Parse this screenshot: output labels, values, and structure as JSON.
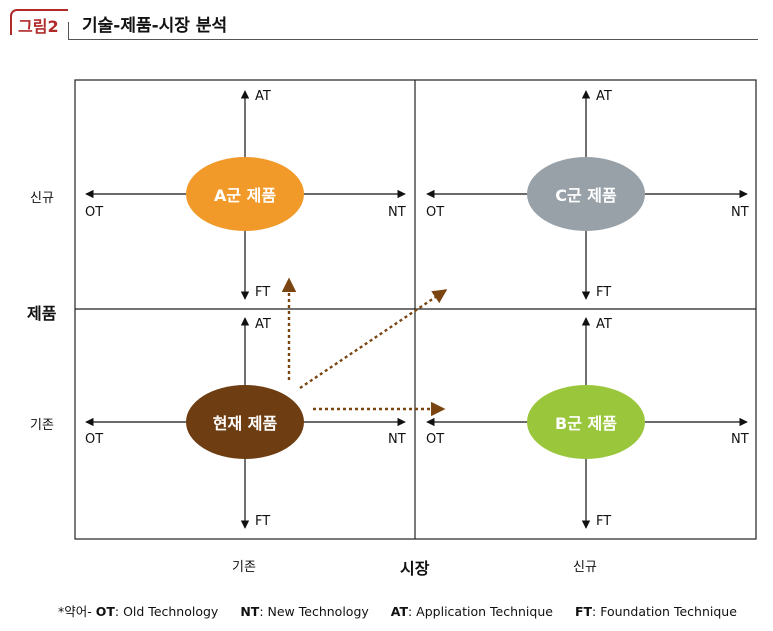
{
  "header": {
    "tag": "그림2",
    "title": "기술-제품-시장 분석"
  },
  "axes": {
    "product_label": "제품",
    "market_label": "시장",
    "row_new": "신규",
    "row_existing": "기존",
    "col_existing": "기존",
    "col_new": "신규"
  },
  "arrow_labels": {
    "up": "AT",
    "down": "FT",
    "left": "OT",
    "right": "NT"
  },
  "products": {
    "a": {
      "label": "A군 제품",
      "color": "#f19a2a"
    },
    "c": {
      "label": "C군 제품",
      "color": "#98a1a8"
    },
    "current": {
      "label": "현재 제품",
      "color": "#6e3e12"
    },
    "b": {
      "label": "B군 제품",
      "color": "#9ac63c"
    }
  },
  "footnote": {
    "prefix": "*약어-",
    "ot_abbr": "OT",
    "ot_text": ": Old Technology",
    "nt_abbr": "NT",
    "nt_text": ": New Technology",
    "at_abbr": "AT",
    "at_text": ": Application Technique",
    "ft_abbr": "FT",
    "ft_text": ": Foundation Technique"
  },
  "colors": {
    "dotted_arrow": "#7a4510"
  }
}
